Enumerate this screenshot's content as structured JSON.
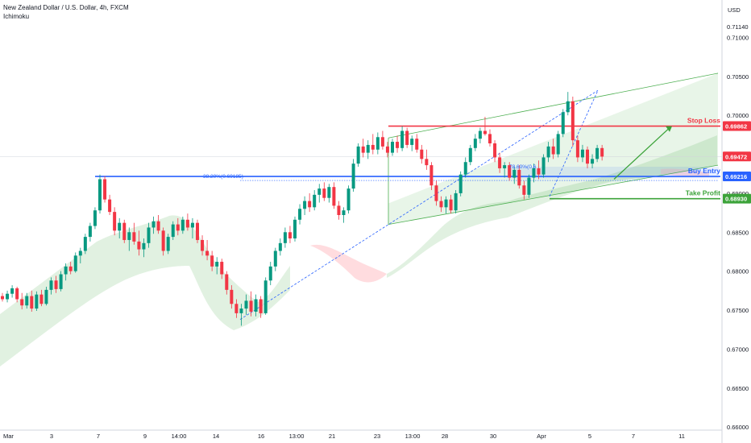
{
  "header": {
    "title": "New Zealand Dollar / U.S. Dollar, 4h, FXCM",
    "indicator": "Ichimoku"
  },
  "colors": {
    "bull": "#089981",
    "bear": "#f23645",
    "stop_loss": "#f23645",
    "buy_entry": "#2962ff",
    "take_profit": "#3ca33a",
    "channel": "#4caf50",
    "cloud_green": "#c8e6c9",
    "cloud_red": "#ffcdd2",
    "current": "#f23645"
  },
  "chart_data": {
    "type": "candlestick",
    "symbol": "NZDUSD",
    "timeframe": "4h",
    "currency_label": "USD",
    "ylim": [
      0.6596,
      0.7148
    ],
    "y_ticks": [
      "0.71140",
      "0.71000",
      "0.70500",
      "0.70000",
      "0.69500",
      "0.69000",
      "0.68500",
      "0.68000",
      "0.67500",
      "0.67000",
      "0.66500",
      "0.66000"
    ],
    "x_ticks": [
      "Mar",
      "3",
      "7",
      "9",
      "14:00",
      "14",
      "16",
      "13:00",
      "21",
      "23",
      "13:00",
      "28",
      "30",
      "Apr",
      "5",
      "7",
      "11"
    ],
    "price_tags": [
      {
        "label": "0.69862",
        "value": 0.69862,
        "kind": "stop_loss"
      },
      {
        "label": "0.69472",
        "value": 0.69472,
        "kind": "current"
      },
      {
        "label": "0.69216",
        "value": 0.69216,
        "kind": "buy_entry"
      },
      {
        "label": "0.68930",
        "value": 0.6893,
        "kind": "take_profit"
      }
    ],
    "levels": [
      {
        "label": "Stop Loss",
        "value": 0.69862,
        "kind": "stop_loss"
      },
      {
        "label": "Buy Entry",
        "value": 0.69216,
        "kind": "buy_entry"
      },
      {
        "label": "Take Profit",
        "value": 0.6893,
        "kind": "take_profit"
      }
    ],
    "fib_labels": [
      "38.20%(0.69185)",
      "78.60%(0.6"
    ],
    "candles": [
      [
        0.6768,
        0.6772,
        0.6761,
        0.6764
      ],
      [
        0.6764,
        0.6775,
        0.676,
        0.6771
      ],
      [
        0.6771,
        0.6782,
        0.6766,
        0.6778
      ],
      [
        0.6778,
        0.678,
        0.676,
        0.6764
      ],
      [
        0.6764,
        0.6772,
        0.6751,
        0.6756
      ],
      [
        0.6756,
        0.6772,
        0.6752,
        0.6768
      ],
      [
        0.6768,
        0.6775,
        0.6748,
        0.6752
      ],
      [
        0.6752,
        0.6774,
        0.6749,
        0.677
      ],
      [
        0.677,
        0.6776,
        0.6755,
        0.6758
      ],
      [
        0.6758,
        0.678,
        0.6756,
        0.6776
      ],
      [
        0.6776,
        0.6792,
        0.677,
        0.6788
      ],
      [
        0.6788,
        0.6794,
        0.6772,
        0.6777
      ],
      [
        0.6777,
        0.68,
        0.6774,
        0.6796
      ],
      [
        0.6796,
        0.681,
        0.6788,
        0.6806
      ],
      [
        0.6806,
        0.6812,
        0.6796,
        0.68
      ],
      [
        0.68,
        0.6824,
        0.6798,
        0.682
      ],
      [
        0.682,
        0.683,
        0.681,
        0.6826
      ],
      [
        0.6826,
        0.6848,
        0.6822,
        0.6844
      ],
      [
        0.6844,
        0.6862,
        0.6838,
        0.6858
      ],
      [
        0.6858,
        0.6882,
        0.6854,
        0.6878
      ],
      [
        0.6878,
        0.6924,
        0.6874,
        0.6918
      ],
      [
        0.6918,
        0.6922,
        0.6888,
        0.6892
      ],
      [
        0.6892,
        0.6898,
        0.6872,
        0.6876
      ],
      [
        0.6876,
        0.6882,
        0.6846,
        0.6852
      ],
      [
        0.6852,
        0.6868,
        0.6842,
        0.6862
      ],
      [
        0.6862,
        0.6866,
        0.6836,
        0.684
      ],
      [
        0.684,
        0.6856,
        0.6826,
        0.685
      ],
      [
        0.685,
        0.6862,
        0.6834,
        0.6838
      ],
      [
        0.6838,
        0.6852,
        0.682,
        0.6828
      ],
      [
        0.6828,
        0.6842,
        0.6818,
        0.6836
      ],
      [
        0.6836,
        0.6862,
        0.683,
        0.6856
      ],
      [
        0.6856,
        0.687,
        0.6848,
        0.6864
      ],
      [
        0.6864,
        0.6872,
        0.6848,
        0.6852
      ],
      [
        0.6852,
        0.6856,
        0.682,
        0.6826
      ],
      [
        0.6826,
        0.6848,
        0.6822,
        0.6844
      ],
      [
        0.6844,
        0.6864,
        0.684,
        0.686
      ],
      [
        0.686,
        0.6868,
        0.6846,
        0.6852
      ],
      [
        0.6852,
        0.687,
        0.6848,
        0.6866
      ],
      [
        0.6866,
        0.6874,
        0.6852,
        0.6856
      ],
      [
        0.6856,
        0.6868,
        0.6842,
        0.6862
      ],
      [
        0.6862,
        0.6866,
        0.6836,
        0.684
      ],
      [
        0.684,
        0.6846,
        0.682,
        0.6826
      ],
      [
        0.6826,
        0.684,
        0.6814,
        0.682
      ],
      [
        0.682,
        0.6826,
        0.68,
        0.6806
      ],
      [
        0.6806,
        0.6818,
        0.6796,
        0.6812
      ],
      [
        0.6812,
        0.6816,
        0.679,
        0.6796
      ],
      [
        0.6796,
        0.68,
        0.677,
        0.6776
      ],
      [
        0.6776,
        0.6782,
        0.6752,
        0.6758
      ],
      [
        0.6758,
        0.6764,
        0.674,
        0.6746
      ],
      [
        0.6746,
        0.6758,
        0.673,
        0.6752
      ],
      [
        0.6752,
        0.677,
        0.6744,
        0.6762
      ],
      [
        0.6762,
        0.6774,
        0.6742,
        0.6748
      ],
      [
        0.6748,
        0.677,
        0.6742,
        0.6764
      ],
      [
        0.6764,
        0.6768,
        0.674,
        0.6746
      ],
      [
        0.6746,
        0.6792,
        0.6744,
        0.6788
      ],
      [
        0.6788,
        0.6812,
        0.6782,
        0.6806
      ],
      [
        0.6806,
        0.683,
        0.68,
        0.6826
      ],
      [
        0.6826,
        0.6842,
        0.682,
        0.6836
      ],
      [
        0.6836,
        0.6856,
        0.683,
        0.685
      ],
      [
        0.685,
        0.6858,
        0.6836,
        0.6842
      ],
      [
        0.6842,
        0.687,
        0.6838,
        0.6866
      ],
      [
        0.6866,
        0.6886,
        0.686,
        0.688
      ],
      [
        0.688,
        0.6896,
        0.6872,
        0.689
      ],
      [
        0.689,
        0.69,
        0.6876,
        0.6882
      ],
      [
        0.6882,
        0.6904,
        0.6878,
        0.6898
      ],
      [
        0.6898,
        0.6912,
        0.6888,
        0.6906
      ],
      [
        0.6906,
        0.6914,
        0.689,
        0.6894
      ],
      [
        0.6894,
        0.6912,
        0.6888,
        0.6908
      ],
      [
        0.6908,
        0.6914,
        0.688,
        0.6884
      ],
      [
        0.6884,
        0.689,
        0.6866,
        0.6872
      ],
      [
        0.6872,
        0.6882,
        0.6862,
        0.6878
      ],
      [
        0.6878,
        0.691,
        0.6874,
        0.6906
      ],
      [
        0.6906,
        0.6944,
        0.6902,
        0.6938
      ],
      [
        0.6938,
        0.6964,
        0.6934,
        0.696
      ],
      [
        0.696,
        0.697,
        0.6946,
        0.6952
      ],
      [
        0.6952,
        0.6968,
        0.6944,
        0.6962
      ],
      [
        0.6962,
        0.6976,
        0.695,
        0.6956
      ],
      [
        0.6956,
        0.6978,
        0.695,
        0.6972
      ],
      [
        0.6972,
        0.698,
        0.6956,
        0.696
      ],
      [
        0.696,
        0.6966,
        0.6946,
        0.6952
      ],
      [
        0.6952,
        0.697,
        0.6948,
        0.6966
      ],
      [
        0.6966,
        0.6974,
        0.6952,
        0.6958
      ],
      [
        0.6958,
        0.6986,
        0.6954,
        0.698
      ],
      [
        0.698,
        0.6984,
        0.6958,
        0.6962
      ],
      [
        0.6962,
        0.6974,
        0.6954,
        0.697
      ],
      [
        0.697,
        0.6976,
        0.6952,
        0.6956
      ],
      [
        0.6956,
        0.6962,
        0.6938,
        0.6944
      ],
      [
        0.6944,
        0.6956,
        0.693,
        0.6936
      ],
      [
        0.6936,
        0.694,
        0.6904,
        0.691
      ],
      [
        0.691,
        0.6916,
        0.6884,
        0.689
      ],
      [
        0.689,
        0.6896,
        0.6876,
        0.6882
      ],
      [
        0.6882,
        0.6896,
        0.6874,
        0.6892
      ],
      [
        0.6892,
        0.6898,
        0.6874,
        0.6878
      ],
      [
        0.6878,
        0.6904,
        0.6874,
        0.69
      ],
      [
        0.69,
        0.6928,
        0.6896,
        0.6924
      ],
      [
        0.6924,
        0.6946,
        0.692,
        0.694
      ],
      [
        0.694,
        0.6962,
        0.6936,
        0.6958
      ],
      [
        0.6958,
        0.6976,
        0.6954,
        0.697
      ],
      [
        0.697,
        0.6984,
        0.6964,
        0.698
      ],
      [
        0.698,
        0.6998,
        0.6974,
        0.6976
      ],
      [
        0.6976,
        0.6982,
        0.696,
        0.6964
      ],
      [
        0.6964,
        0.6968,
        0.694,
        0.6946
      ],
      [
        0.6946,
        0.6952,
        0.6926,
        0.6932
      ],
      [
        0.6932,
        0.694,
        0.692,
        0.6936
      ],
      [
        0.6936,
        0.694,
        0.6916,
        0.692
      ],
      [
        0.692,
        0.6934,
        0.6912,
        0.693
      ],
      [
        0.693,
        0.6936,
        0.6906,
        0.691
      ],
      [
        0.691,
        0.6916,
        0.6892,
        0.6898
      ],
      [
        0.6898,
        0.6924,
        0.6894,
        0.692
      ],
      [
        0.692,
        0.6938,
        0.6914,
        0.6932
      ],
      [
        0.6932,
        0.6942,
        0.6918,
        0.6924
      ],
      [
        0.6924,
        0.695,
        0.692,
        0.6946
      ],
      [
        0.6946,
        0.6966,
        0.694,
        0.696
      ],
      [
        0.696,
        0.697,
        0.6944,
        0.695
      ],
      [
        0.695,
        0.698,
        0.6946,
        0.6976
      ],
      [
        0.6976,
        0.7008,
        0.6972,
        0.7004
      ],
      [
        0.7004,
        0.703,
        0.7,
        0.7018
      ],
      [
        0.7018,
        0.7024,
        0.696,
        0.6968
      ],
      [
        0.6968,
        0.6974,
        0.694,
        0.6946
      ],
      [
        0.6946,
        0.6962,
        0.694,
        0.6956
      ],
      [
        0.6956,
        0.696,
        0.6932,
        0.6938
      ],
      [
        0.6938,
        0.695,
        0.6932,
        0.6944
      ],
      [
        0.6944,
        0.6962,
        0.694,
        0.6958
      ],
      [
        0.6958,
        0.6962,
        0.6942,
        0.6947
      ]
    ]
  }
}
